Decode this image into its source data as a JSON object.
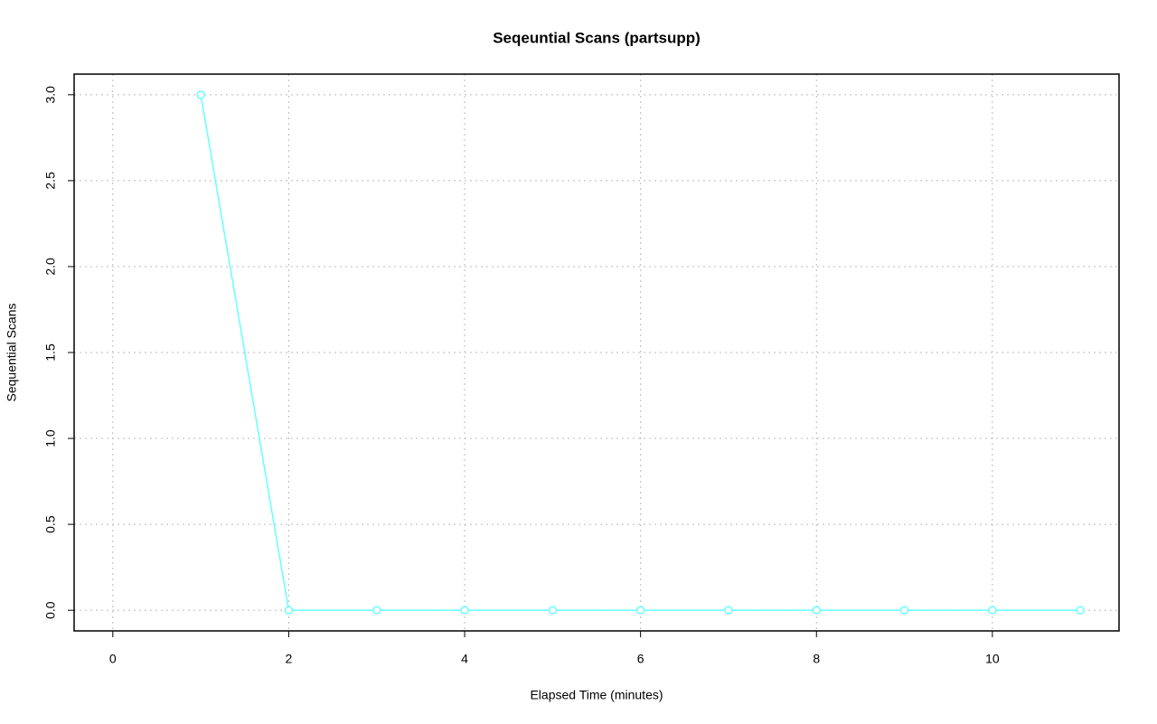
{
  "chart_data": {
    "type": "line",
    "title": "Seqeuntial Scans (partsupp)",
    "x_label": "Elapsed Time (minutes)",
    "y_label": "Sequential Scans",
    "x": [
      1,
      2,
      3,
      4,
      5,
      6,
      7,
      8,
      9,
      10,
      11
    ],
    "series": [
      {
        "color": "#66ffff",
        "values": [
          3,
          0,
          0,
          0,
          0,
          0,
          0,
          0,
          0,
          0,
          0
        ]
      }
    ],
    "xlim": [
      -0.44,
      11.44
    ],
    "ylim": [
      -0.12,
      3.12
    ],
    "xticks": [
      0,
      2,
      4,
      6,
      8,
      10
    ],
    "yticks": [
      {
        "value": 0,
        "label": "0.0"
      },
      {
        "value": 0.5,
        "label": "0.5"
      },
      {
        "value": 1,
        "label": "1.0"
      },
      {
        "value": 1.5,
        "label": "1.5"
      },
      {
        "value": 2,
        "label": "2.0"
      },
      {
        "value": 2.5,
        "label": "2.5"
      },
      {
        "value": 3,
        "label": "3.0"
      }
    ],
    "grid": true
  }
}
